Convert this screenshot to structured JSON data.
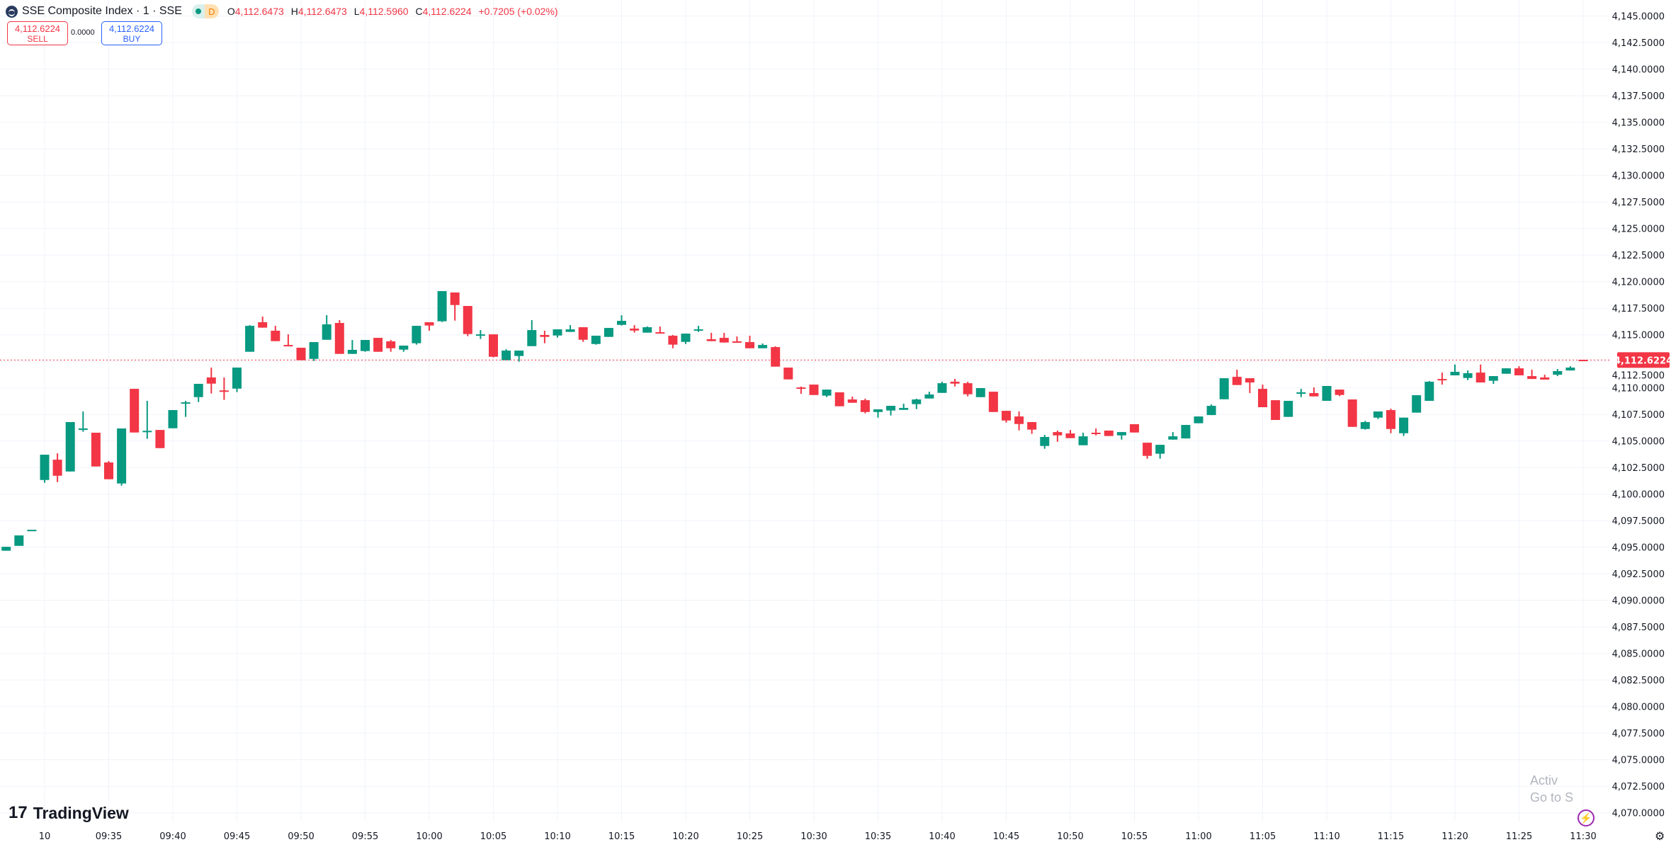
{
  "header": {
    "symbol_title": "SSE Composite Index · 1 · SSE",
    "market_status_icon": "green-dot-icon",
    "data_badge": "D",
    "open_label": "O",
    "open": "4,112.6473",
    "high_label": "H",
    "high": "4,112.6473",
    "low_label": "L",
    "low": "4,112.5960",
    "close_label": "C",
    "close": "4,112.6224",
    "change": "+0.7205 (+0.02%)"
  },
  "trade": {
    "sell_price": "4,112.6224",
    "sell_label": "SELL",
    "spread": "0.0000",
    "buy_price": "4,112.6224",
    "buy_label": "BUY"
  },
  "branding": {
    "logo_text": "TradingView",
    "logo_mark": "17"
  },
  "watermark": {
    "line1": "Activ",
    "line2": "Go to S"
  },
  "icons": {
    "alert": "lightning-icon",
    "settings": "gear-icon"
  },
  "colors": {
    "up": "#089981",
    "down": "#F23645",
    "last_price_line": "#F23645",
    "grid": "#F0F3FA"
  },
  "chart_data": {
    "type": "candlestick",
    "interval": "1",
    "current_price": 4112.6224,
    "current_price_label": "4,112.6224",
    "ylim": [
      4070,
      4145
    ],
    "grid": true,
    "y_ticks": [
      "4,145.0000",
      "4,142.5000",
      "4,140.0000",
      "4,137.5000",
      "4,135.0000",
      "4,132.5000",
      "4,130.0000",
      "4,127.5000",
      "4,125.0000",
      "4,122.5000",
      "4,120.0000",
      "4,117.5000",
      "4,115.0000",
      "4,112.5000",
      "4,110.0000",
      "4,107.5000",
      "4,105.0000",
      "4,102.5000",
      "4,100.0000",
      "4,097.5000",
      "4,095.0000",
      "4,092.5000",
      "4,090.0000",
      "4,087.5000",
      "4,085.0000",
      "4,082.5000",
      "4,080.0000",
      "4,077.5000",
      "4,075.0000",
      "4,072.5000",
      "4,070.0000"
    ],
    "x_ticks": [
      "10",
      "09:35",
      "09:40",
      "09:45",
      "09:50",
      "09:55",
      "10:00",
      "10:05",
      "10:10",
      "10:15",
      "10:20",
      "10:25",
      "10:30",
      "10:35",
      "10:40",
      "10:45",
      "10:50",
      "10:55",
      "11:00",
      "11:05",
      "11:10",
      "11:15",
      "11:20",
      "11:25",
      "11:30"
    ],
    "prior_session_candles": [
      [
        4094.67,
        4095.04,
        4094.67,
        4095.04
      ],
      [
        4095.13,
        4096.11,
        4095.13,
        4096.11
      ],
      [
        4096.6,
        4096.64,
        4096.6,
        4096.64
      ]
    ],
    "candle_fields": [
      "time",
      "open",
      "high",
      "low",
      "close"
    ],
    "candles": [
      [
        "09:30",
        4101.33,
        4103.71,
        4101.07,
        4103.71
      ],
      [
        "09:31",
        4103.24,
        4103.84,
        4101.13,
        4101.73
      ],
      [
        "09:32",
        4102.13,
        4106.78,
        4102.13,
        4106.78
      ],
      [
        "09:33",
        4106.13,
        4107.78,
        4105.87,
        4106.18
      ],
      [
        "09:34",
        4105.78,
        4105.78,
        4102.6,
        4102.6
      ],
      [
        "09:35",
        4102.98,
        4103.11,
        4101.4,
        4101.4
      ],
      [
        "09:36",
        4101.0,
        4106.18,
        4100.8,
        4106.18
      ],
      [
        "09:37",
        4109.91,
        4109.91,
        4105.8,
        4105.8
      ],
      [
        "09:38",
        4105.93,
        4108.78,
        4105.2,
        4105.96
      ],
      [
        "09:39",
        4106.04,
        4106.04,
        4104.33,
        4104.33
      ],
      [
        "09:40",
        4106.2,
        4107.91,
        4106.2,
        4107.91
      ],
      [
        "09:41",
        4108.62,
        4108.78,
        4107.27,
        4108.64
      ],
      [
        "09:42",
        4109.13,
        4110.38,
        4108.67,
        4110.38
      ],
      [
        "09:43",
        4110.98,
        4111.91,
        4109.47,
        4110.4
      ],
      [
        "09:44",
        4109.76,
        4110.98,
        4108.87,
        4109.73
      ],
      [
        "09:45",
        4109.93,
        4111.91,
        4109.6,
        4111.91
      ],
      [
        "09:46",
        4113.4,
        4115.91,
        4113.4,
        4115.84
      ],
      [
        "09:47",
        4116.18,
        4116.71,
        4115.67,
        4115.67
      ],
      [
        "09:48",
        4115.38,
        4115.84,
        4114.4,
        4114.4
      ],
      [
        "09:49",
        4114.04,
        4115.04,
        4114.0,
        4114.0
      ],
      [
        "09:50",
        4113.78,
        4113.78,
        4112.6,
        4112.6
      ],
      [
        "09:51",
        4112.73,
        4114.31,
        4112.53,
        4114.31
      ],
      [
        "09:52",
        4114.53,
        4116.84,
        4114.53,
        4115.98
      ],
      [
        "09:53",
        4116.11,
        4116.38,
        4113.2,
        4113.2
      ],
      [
        "09:54",
        4113.2,
        4114.51,
        4113.2,
        4113.58
      ],
      [
        "09:55",
        4113.47,
        4114.51,
        4113.4,
        4114.51
      ],
      [
        "09:56",
        4114.71,
        4114.71,
        4113.4,
        4113.4
      ],
      [
        "09:57",
        4114.38,
        4114.51,
        4113.4,
        4113.73
      ],
      [
        "09:58",
        4113.6,
        4113.98,
        4113.4,
        4113.98
      ],
      [
        "09:59",
        4114.2,
        4115.84,
        4114.07,
        4115.84
      ],
      [
        "10:00",
        4116.18,
        4116.18,
        4115.38,
        4115.87
      ],
      [
        "10:01",
        4116.27,
        4119.11,
        4116.2,
        4119.11
      ],
      [
        "10:02",
        4118.98,
        4118.98,
        4116.33,
        4117.8
      ],
      [
        "10:03",
        4117.71,
        4117.71,
        4114.87,
        4115.07
      ],
      [
        "10:04",
        4115.0,
        4115.44,
        4114.6,
        4115.04
      ],
      [
        "10:05",
        4115.04,
        4115.04,
        4112.87,
        4112.93
      ],
      [
        "10:06",
        4112.6,
        4113.64,
        4112.6,
        4113.51
      ],
      [
        "10:07",
        4113.0,
        4113.51,
        4112.47,
        4113.51
      ],
      [
        "10:08",
        4113.93,
        4116.38,
        4113.93,
        4115.44
      ],
      [
        "10:09",
        4114.98,
        4115.38,
        4114.2,
        4114.8
      ],
      [
        "10:10",
        4114.93,
        4115.51,
        4114.73,
        4115.51
      ],
      [
        "10:11",
        4115.27,
        4115.91,
        4115.27,
        4115.51
      ],
      [
        "10:12",
        4115.71,
        4115.71,
        4114.33,
        4114.53
      ],
      [
        "10:13",
        4114.13,
        4114.91,
        4114.07,
        4114.91
      ],
      [
        "10:14",
        4114.8,
        4115.64,
        4114.8,
        4115.64
      ],
      [
        "10:15",
        4115.93,
        4116.84,
        4115.87,
        4116.31
      ],
      [
        "10:16",
        4115.58,
        4115.91,
        4115.2,
        4115.4
      ],
      [
        "10:17",
        4115.2,
        4115.78,
        4115.2,
        4115.71
      ],
      [
        "10:18",
        4115.24,
        4115.78,
        4115.13,
        4115.13
      ],
      [
        "10:19",
        4114.91,
        4114.98,
        4113.73,
        4114.07
      ],
      [
        "10:20",
        4114.33,
        4115.11,
        4114.13,
        4115.11
      ],
      [
        "10:21",
        4115.49,
        4115.84,
        4115.27,
        4115.51
      ],
      [
        "10:22",
        4114.58,
        4115.18,
        4114.4,
        4114.4
      ],
      [
        "10:23",
        4114.71,
        4115.18,
        4114.27,
        4114.27
      ],
      [
        "10:24",
        4114.38,
        4114.84,
        4114.33,
        4114.33
      ],
      [
        "10:25",
        4114.31,
        4114.91,
        4113.73,
        4113.73
      ],
      [
        "10:26",
        4113.73,
        4114.18,
        4113.73,
        4114.04
      ],
      [
        "10:27",
        4113.84,
        4113.91,
        4112.0,
        4112.0
      ],
      [
        "10:28",
        4111.91,
        4111.91,
        4110.8,
        4110.8
      ],
      [
        "10:29",
        4110.04,
        4110.13,
        4109.44,
        4109.93
      ],
      [
        "10:30",
        4110.31,
        4110.31,
        4109.33,
        4109.33
      ],
      [
        "10:31",
        4109.27,
        4109.84,
        4109.13,
        4109.84
      ],
      [
        "10:32",
        4109.58,
        4109.58,
        4108.27,
        4108.27
      ],
      [
        "10:33",
        4108.91,
        4109.18,
        4108.6,
        4108.6
      ],
      [
        "10:34",
        4108.84,
        4108.98,
        4107.6,
        4107.73
      ],
      [
        "10:35",
        4107.73,
        4107.98,
        4107.2,
        4107.98
      ],
      [
        "10:36",
        4107.87,
        4108.31,
        4107.4,
        4108.31
      ],
      [
        "10:37",
        4107.93,
        4108.51,
        4107.93,
        4108.11
      ],
      [
        "10:38",
        4108.47,
        4108.98,
        4108.0,
        4108.91
      ],
      [
        "10:39",
        4109.0,
        4109.64,
        4109.0,
        4109.38
      ],
      [
        "10:40",
        4109.53,
        4110.58,
        4109.53,
        4110.44
      ],
      [
        "10:41",
        4110.58,
        4110.84,
        4110.13,
        4110.4
      ],
      [
        "10:42",
        4110.44,
        4110.58,
        4109.2,
        4109.4
      ],
      [
        "10:43",
        4109.13,
        4109.98,
        4109.13,
        4109.98
      ],
      [
        "10:44",
        4109.64,
        4109.64,
        4107.73,
        4107.73
      ],
      [
        "10:45",
        4107.84,
        4107.84,
        4106.73,
        4106.93
      ],
      [
        "10:46",
        4107.31,
        4107.78,
        4106.0,
        4106.6
      ],
      [
        "10:47",
        4106.78,
        4106.78,
        4105.67,
        4106.07
      ],
      [
        "10:48",
        4104.53,
        4105.58,
        4104.27,
        4105.38
      ],
      [
        "10:49",
        4105.84,
        4105.98,
        4104.93,
        4105.53
      ],
      [
        "10:50",
        4105.71,
        4106.04,
        4105.27,
        4105.27
      ],
      [
        "10:51",
        4104.6,
        4105.78,
        4104.6,
        4105.44
      ],
      [
        "10:52",
        4105.78,
        4106.18,
        4105.53,
        4105.73
      ],
      [
        "10:53",
        4105.98,
        4105.98,
        4105.47,
        4105.47
      ],
      [
        "10:54",
        4105.53,
        4105.84,
        4105.13,
        4105.84
      ],
      [
        "10:55",
        4106.58,
        4106.58,
        4105.8,
        4105.8
      ],
      [
        "10:56",
        4104.84,
        4104.84,
        4103.33,
        4103.6
      ],
      [
        "10:57",
        4103.8,
        4104.64,
        4103.33,
        4104.64
      ],
      [
        "10:58",
        4105.13,
        4105.84,
        4105.13,
        4105.44
      ],
      [
        "10:59",
        4105.24,
        4106.51,
        4105.24,
        4106.51
      ],
      [
        "11:00",
        4106.67,
        4107.31,
        4106.67,
        4107.31
      ],
      [
        "11:01",
        4107.44,
        4108.44,
        4107.44,
        4108.31
      ],
      [
        "11:02",
        4108.93,
        4110.91,
        4108.93,
        4110.91
      ],
      [
        "11:03",
        4111.04,
        4111.71,
        4110.27,
        4110.27
      ],
      [
        "11:04",
        4110.91,
        4110.91,
        4109.51,
        4110.51
      ],
      [
        "11:05",
        4109.91,
        4110.31,
        4108.18,
        4108.18
      ],
      [
        "11:06",
        4108.84,
        4108.84,
        4106.98,
        4106.98
      ],
      [
        "11:07",
        4107.27,
        4108.78,
        4107.27,
        4108.78
      ],
      [
        "11:08",
        4109.47,
        4109.91,
        4109.13,
        4109.58
      ],
      [
        "11:09",
        4109.51,
        4110.04,
        4109.2,
        4109.2
      ],
      [
        "11:10",
        4108.78,
        4110.18,
        4108.78,
        4110.18
      ],
      [
        "11:11",
        4109.84,
        4109.84,
        4109.22,
        4109.33
      ],
      [
        "11:12",
        4108.91,
        4108.91,
        4106.33,
        4106.33
      ],
      [
        "11:13",
        4106.13,
        4106.89,
        4106.07,
        4106.78
      ],
      [
        "11:14",
        4107.2,
        4107.78,
        4107.07,
        4107.78
      ],
      [
        "11:15",
        4107.91,
        4108.04,
        4105.73,
        4106.13
      ],
      [
        "11:16",
        4105.73,
        4107.2,
        4105.47,
        4107.2
      ],
      [
        "11:17",
        4107.67,
        4109.31,
        4107.67,
        4109.31
      ],
      [
        "11:18",
        4108.78,
        4110.64,
        4108.78,
        4110.58
      ],
      [
        "11:19",
        4110.84,
        4111.44,
        4110.31,
        4110.73
      ],
      [
        "11:20",
        4111.18,
        4112.2,
        4111.18,
        4111.51
      ],
      [
        "11:21",
        4110.93,
        4111.64,
        4110.73,
        4111.38
      ],
      [
        "11:22",
        4111.44,
        4112.2,
        4110.51,
        4110.51
      ],
      [
        "11:23",
        4110.67,
        4111.11,
        4110.38,
        4111.11
      ],
      [
        "11:24",
        4111.33,
        4111.84,
        4111.33,
        4111.84
      ],
      [
        "11:25",
        4111.84,
        4112.04,
        4111.18,
        4111.18
      ],
      [
        "11:26",
        4111.11,
        4111.71,
        4110.84,
        4110.84
      ],
      [
        "11:27",
        4110.98,
        4111.24,
        4110.78,
        4110.78
      ],
      [
        "11:28",
        4111.24,
        4111.78,
        4111.11,
        4111.58
      ],
      [
        "11:29",
        4111.64,
        4112.04,
        4111.64,
        4111.91
      ],
      [
        "11:30",
        4112.6473,
        4112.6473,
        4112.596,
        4112.6224
      ]
    ]
  }
}
